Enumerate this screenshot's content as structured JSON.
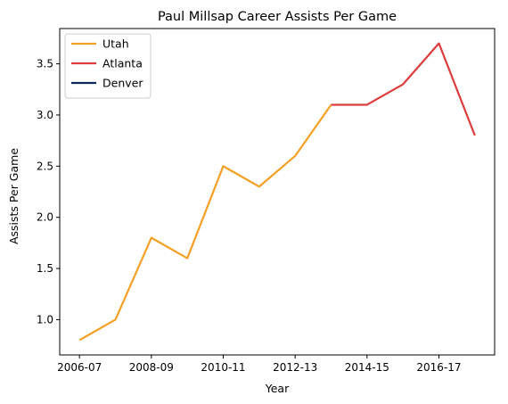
{
  "chart_data": {
    "type": "line",
    "title": "Paul Millsap Career Assists Per Game",
    "xlabel": "Year",
    "ylabel": "Assists Per Game",
    "x_tick_labels": [
      "2006-07",
      "2008-09",
      "2010-11",
      "2012-13",
      "2014-15",
      "2016-17"
    ],
    "y_tick_labels": [
      "1.0",
      "1.5",
      "2.0",
      "2.5",
      "3.0",
      "3.5"
    ],
    "y_ticks": [
      1.0,
      1.5,
      2.0,
      2.5,
      3.0,
      3.5
    ],
    "ylim": [
      0.655,
      3.845
    ],
    "legend_placement": "upper-left",
    "grid": false,
    "series": [
      {
        "name": "Utah",
        "color": "#f4a024",
        "points": [
          {
            "x": "2006-07",
            "y": 0.8
          },
          {
            "x": "2007-08",
            "y": 1.0
          },
          {
            "x": "2008-09",
            "y": 1.8
          },
          {
            "x": "2009-10",
            "y": 1.6
          },
          {
            "x": "2010-11",
            "y": 2.5
          },
          {
            "x": "2011-12",
            "y": 2.3
          },
          {
            "x": "2012-13",
            "y": 2.6
          },
          {
            "x": "2013-14",
            "y": 3.1
          }
        ]
      },
      {
        "name": "Atlanta",
        "color": "#dc3c3c",
        "points": [
          {
            "x": "2013-14",
            "y": 3.1
          },
          {
            "x": "2014-15",
            "y": 3.1
          },
          {
            "x": "2015-16",
            "y": 3.3
          },
          {
            "x": "2016-17",
            "y": 3.7
          },
          {
            "x": "2017-18",
            "y": 2.8
          }
        ]
      },
      {
        "name": "Denver",
        "color": "#0b2a5b",
        "points": []
      }
    ]
  }
}
